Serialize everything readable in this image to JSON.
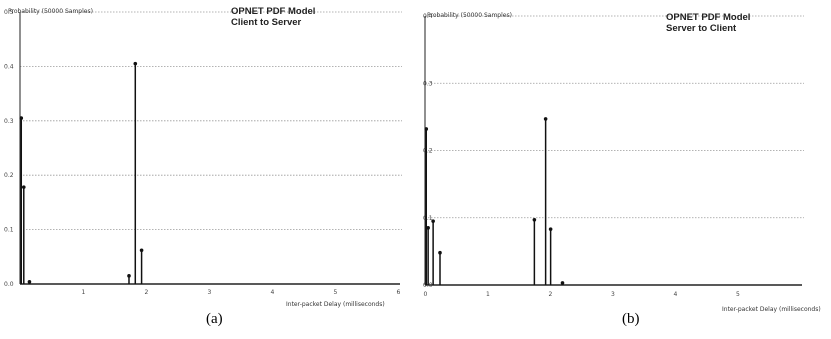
{
  "chart_data": [
    {
      "type": "bar",
      "title_lines": [
        "OPNET PDF Model",
        "Client to Server"
      ],
      "ylabel": "Probability (50000 Samples)",
      "xlabel": "Inter-packet Delay (milliseconds)",
      "caption": "(a)",
      "xlim": [
        0,
        6
      ],
      "ylim": [
        0,
        0.5
      ],
      "xticks": [
        {
          "v": 1,
          "label": "1"
        },
        {
          "v": 2,
          "label": "2"
        },
        {
          "v": 3,
          "label": "3"
        },
        {
          "v": 4,
          "label": "4"
        },
        {
          "v": 5,
          "label": "5"
        },
        {
          "v": 6,
          "label": "6"
        }
      ],
      "yticks": [
        {
          "v": 0,
          "label": "0.0"
        },
        {
          "v": 0.1,
          "label": "0.1"
        },
        {
          "v": 0.2,
          "label": "0.2"
        },
        {
          "v": 0.3,
          "label": "0.3"
        },
        {
          "v": 0.4,
          "label": "0.4"
        },
        {
          "v": 0.5,
          "label": "0.5"
        }
      ],
      "grid": "horizontal",
      "points": [
        {
          "x": 0.02,
          "y": 0.305
        },
        {
          "x": 0.06,
          "y": 0.178
        },
        {
          "x": 0.15,
          "y": 0.004
        },
        {
          "x": 1.73,
          "y": 0.015
        },
        {
          "x": 1.83,
          "y": 0.405
        },
        {
          "x": 1.93,
          "y": 0.062
        }
      ]
    },
    {
      "type": "bar",
      "title_lines": [
        "OPNET PDF Model",
        "Server to Client"
      ],
      "ylabel": "Probability (50000 Samples)",
      "xlabel": "Inter-packet Delay (milliseconds)",
      "caption": "(b)",
      "xlim": [
        0,
        6
      ],
      "ylim": [
        0,
        0.4
      ],
      "xticks": [
        {
          "v": 0,
          "label": "0"
        },
        {
          "v": 1,
          "label": "1"
        },
        {
          "v": 2,
          "label": "2"
        },
        {
          "v": 3,
          "label": "3"
        },
        {
          "v": 4,
          "label": "4"
        },
        {
          "v": 5,
          "label": "5"
        }
      ],
      "yticks": [
        {
          "v": 0,
          "label": "0.0"
        },
        {
          "v": 0.1,
          "label": "0.1"
        },
        {
          "v": 0.2,
          "label": "0.2"
        },
        {
          "v": 0.3,
          "label": "0.3"
        },
        {
          "v": 0.4,
          "label": "0.4"
        }
      ],
      "grid": "horizontal",
      "points": [
        {
          "x": 0.02,
          "y": 0.232
        },
        {
          "x": 0.05,
          "y": 0.085
        },
        {
          "x": 0.13,
          "y": 0.095
        },
        {
          "x": 0.24,
          "y": 0.048
        },
        {
          "x": 1.75,
          "y": 0.097
        },
        {
          "x": 1.93,
          "y": 0.247
        },
        {
          "x": 2.01,
          "y": 0.083
        },
        {
          "x": 2.2,
          "y": 0.003
        }
      ]
    }
  ]
}
